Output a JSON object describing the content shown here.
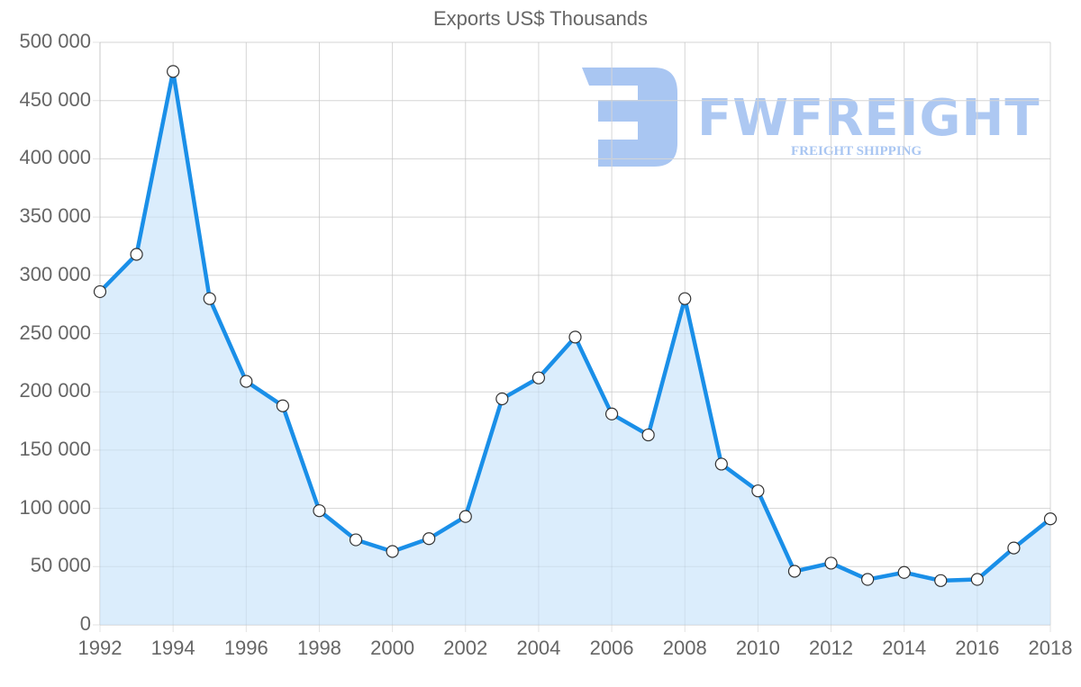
{
  "chart_data": {
    "type": "line",
    "title": "Exports US$ Thousands",
    "xlabel": "",
    "ylabel": "",
    "ylim": [
      0,
      500000
    ],
    "xlim": [
      1992,
      2018
    ],
    "grid": true,
    "legend": "none",
    "fill": true,
    "x": [
      1992,
      1993,
      1994,
      1995,
      1996,
      1997,
      1998,
      1999,
      2000,
      2001,
      2002,
      2003,
      2004,
      2005,
      2006,
      2007,
      2008,
      2009,
      2010,
      2011,
      2012,
      2013,
      2014,
      2015,
      2016,
      2017,
      2018
    ],
    "series": [
      {
        "name": "Exports US$ Thousands",
        "values": [
          286000,
          318000,
          475000,
          280000,
          209000,
          188000,
          98000,
          73000,
          63000,
          74000,
          93000,
          194000,
          212000,
          247000,
          181000,
          163000,
          280000,
          138000,
          115000,
          46000,
          53000,
          39000,
          45000,
          38000,
          39000,
          66000,
          91000
        ],
        "color": "#1a8fe8",
        "fill_color": "#d9ecfc"
      }
    ],
    "y_ticks": [
      "0",
      "50 000",
      "100 000",
      "150 000",
      "200 000",
      "250 000",
      "300 000",
      "350 000",
      "400 000",
      "450 000",
      "500 000"
    ],
    "x_ticks": [
      "1992",
      "1994",
      "1996",
      "1998",
      "2000",
      "2002",
      "2004",
      "2006",
      "2008",
      "2010",
      "2012",
      "2014",
      "2016",
      "2018"
    ]
  },
  "watermark": {
    "brand": "FWFREIGHT",
    "tagline": "FREIGHT SHIPPING",
    "color": "#a9c6f2"
  }
}
